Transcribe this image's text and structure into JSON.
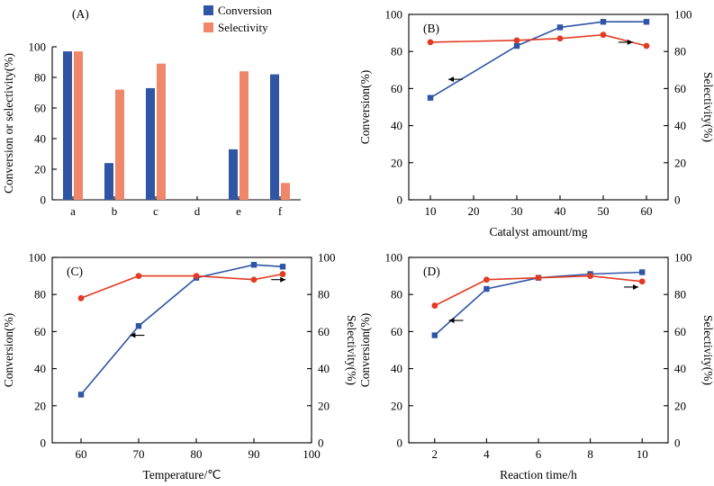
{
  "figure": {
    "background": "#ffffff"
  },
  "colors": {
    "conversion_blue": "#2f55a4",
    "selectivity_salmon": "#f0876a",
    "selectivity_red": "#e23b24",
    "axis_black": "#000000"
  },
  "chart_data": [
    {
      "id": "a",
      "type": "bar",
      "panel_label": "(A)",
      "categories": [
        "a",
        "b",
        "c",
        "d",
        "e",
        "f"
      ],
      "series": [
        {
          "name": "Conversion",
          "color_key": "conversion_blue",
          "values": [
            97,
            24,
            73,
            0,
            33,
            82
          ]
        },
        {
          "name": "Selectivity",
          "color_key": "selectivity_salmon",
          "values": [
            97,
            72,
            89,
            0,
            84,
            11
          ]
        }
      ],
      "legend": [
        "Conversion",
        "Selectivity"
      ],
      "legend_position": "top",
      "ylabel": "Conversion or selectivity(%)",
      "ylim": [
        0,
        100
      ],
      "yticks": [
        0,
        20,
        40,
        60,
        80,
        100
      ],
      "grid": false
    },
    {
      "id": "b",
      "type": "line",
      "panel_label": "(B)",
      "xlabel": "Catalyst amount/mg",
      "ylabel_left": "Conversion(%)",
      "ylabel_right": "Selectivity(%)",
      "xlim": [
        5,
        65
      ],
      "xticks": [
        10,
        20,
        30,
        40,
        50,
        60
      ],
      "ylim": [
        0,
        100
      ],
      "yticks": [
        0,
        20,
        40,
        60,
        80,
        100
      ],
      "grid": false,
      "series": [
        {
          "name": "Conversion",
          "color_key": "conversion_blue",
          "marker": "square",
          "x": [
            10,
            30,
            40,
            50,
            60
          ],
          "y": [
            55,
            83,
            93,
            96,
            96
          ]
        },
        {
          "name": "Selectivity",
          "color_key": "selectivity_red",
          "marker": "circle",
          "x": [
            10,
            30,
            40,
            50,
            60
          ],
          "y": [
            85,
            86,
            87,
            89,
            83
          ]
        }
      ],
      "arrows": [
        {
          "dir": "left",
          "x": 17.5,
          "y": 65
        },
        {
          "dir": "right",
          "x": 53.5,
          "y": 85
        }
      ]
    },
    {
      "id": "c",
      "type": "line",
      "panel_label": "(C)",
      "xlabel": "Temperature/℃",
      "ylabel_left": "Conversion(%)",
      "ylabel_right": "Selectivity(%)",
      "xlim": [
        55,
        100
      ],
      "xticks": [
        60,
        70,
        80,
        90,
        100
      ],
      "ylim": [
        0,
        100
      ],
      "yticks": [
        0,
        20,
        40,
        60,
        80,
        100
      ],
      "grid": false,
      "series": [
        {
          "name": "Conversion",
          "color_key": "conversion_blue",
          "marker": "square",
          "x": [
            60,
            70,
            80,
            90,
            95
          ],
          "y": [
            26,
            63,
            89,
            96,
            95
          ]
        },
        {
          "name": "Selectivity",
          "color_key": "selectivity_red",
          "marker": "circle",
          "x": [
            60,
            70,
            80,
            90,
            95
          ],
          "y": [
            78,
            90,
            90,
            88,
            91
          ]
        }
      ],
      "arrows": [
        {
          "dir": "left",
          "x": 71,
          "y": 58
        },
        {
          "dir": "right",
          "x": 93,
          "y": 88
        }
      ]
    },
    {
      "id": "d",
      "type": "line",
      "panel_label": "(D)",
      "xlabel": "Reaction time/h",
      "ylabel_left": "Conversion(%)",
      "ylabel_right": "Selectivity(%)",
      "xlim": [
        1,
        11
      ],
      "xticks": [
        2,
        4,
        6,
        8,
        10
      ],
      "ylim": [
        0,
        100
      ],
      "yticks": [
        0,
        20,
        40,
        60,
        80,
        100
      ],
      "grid": false,
      "series": [
        {
          "name": "Conversion",
          "color_key": "conversion_blue",
          "marker": "square",
          "x": [
            2,
            4,
            6,
            8,
            10
          ],
          "y": [
            58,
            83,
            89,
            91,
            92
          ]
        },
        {
          "name": "Selectivity",
          "color_key": "selectivity_red",
          "marker": "circle",
          "x": [
            2,
            4,
            6,
            8,
            10
          ],
          "y": [
            74,
            88,
            89,
            90,
            87
          ]
        }
      ],
      "arrows": [
        {
          "dir": "left",
          "x": 3.1,
          "y": 66
        },
        {
          "dir": "right",
          "x": 9.3,
          "y": 84
        }
      ]
    }
  ]
}
